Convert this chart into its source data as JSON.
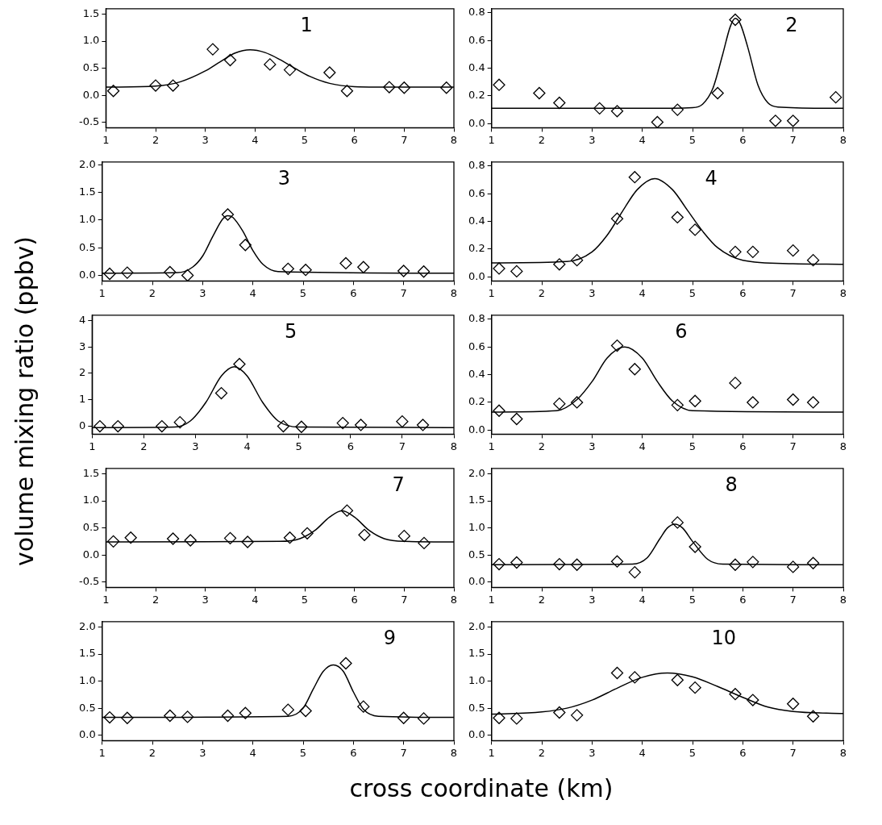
{
  "chart_data": [
    {
      "type": "scatter",
      "annotations": [
        "1"
      ],
      "ylabel": "volume  mixing  ratio  (ppbv)",
      "xlim": [
        1,
        8
      ],
      "xticks": [
        1,
        2,
        3,
        4,
        5,
        6,
        7,
        8
      ],
      "ylim": [
        -0.6,
        1.6
      ],
      "yticks": [
        {
          "value": -0.5,
          "label": "-0.5"
        },
        {
          "value": 0,
          "label": "0.0"
        },
        {
          "value": 0.5,
          "label": "0.5"
        },
        {
          "value": 1,
          "label": "1.0"
        },
        {
          "value": 1.5,
          "label": "1.5"
        }
      ],
      "series": [
        {
          "type": "scatter",
          "marker": "diamond",
          "color": "#000000",
          "x": [
            1.15,
            2.0,
            2.35,
            3.15,
            3.5,
            4.3,
            4.7,
            5.5,
            5.85,
            6.7,
            7.0,
            7.85
          ],
          "values": [
            0.08,
            0.18,
            0.18,
            0.85,
            0.65,
            0.57,
            0.47,
            0.42,
            0.08,
            0.15,
            0.14,
            0.14
          ]
        },
        {
          "type": "line",
          "marker": "none",
          "color": "#000000",
          "x": [
            1,
            2,
            2.5,
            3,
            3.3,
            3.6,
            3.9,
            4.2,
            4.5,
            4.8,
            5.1,
            5.5,
            6,
            7,
            8
          ],
          "values": [
            0.15,
            0.17,
            0.25,
            0.45,
            0.62,
            0.78,
            0.84,
            0.79,
            0.66,
            0.5,
            0.35,
            0.22,
            0.16,
            0.15,
            0.15
          ]
        }
      ]
    },
    {
      "type": "scatter",
      "annotations": [
        "2"
      ],
      "xlim": [
        1,
        8
      ],
      "xticks": [
        1,
        2,
        3,
        4,
        5,
        6,
        7,
        8
      ],
      "ylim": [
        -0.03,
        0.83
      ],
      "yticks": [
        {
          "value": 0,
          "label": "0.0"
        },
        {
          "value": 0.2,
          "label": "0.2"
        },
        {
          "value": 0.4,
          "label": "0.4"
        },
        {
          "value": 0.6,
          "label": "0.6"
        },
        {
          "value": 0.8,
          "label": "0.8"
        }
      ],
      "series": [
        {
          "type": "scatter",
          "marker": "diamond",
          "color": "#000000",
          "x": [
            1.15,
            1.95,
            2.35,
            3.15,
            3.5,
            4.3,
            4.7,
            5.5,
            5.85,
            6.65,
            7.0,
            7.85
          ],
          "values": [
            0.28,
            0.22,
            0.15,
            0.11,
            0.09,
            0.01,
            0.1,
            0.22,
            0.75,
            0.02,
            0.02,
            0.19
          ]
        },
        {
          "type": "line",
          "marker": "none",
          "color": "#000000",
          "x": [
            1,
            4,
            5,
            5.2,
            5.4,
            5.6,
            5.75,
            5.85,
            5.95,
            6.1,
            6.3,
            6.5,
            6.7,
            8
          ],
          "values": [
            0.11,
            0.11,
            0.115,
            0.14,
            0.25,
            0.5,
            0.7,
            0.76,
            0.72,
            0.55,
            0.28,
            0.15,
            0.12,
            0.11
          ]
        }
      ]
    },
    {
      "type": "scatter",
      "annotations": [
        "3"
      ],
      "xlim": [
        1,
        8
      ],
      "xticks": [
        1,
        2,
        3,
        4,
        5,
        6,
        7,
        8
      ],
      "ylim": [
        -0.1,
        2.05
      ],
      "yticks": [
        {
          "value": 0,
          "label": "0.0"
        },
        {
          "value": 0.5,
          "label": "0.5"
        },
        {
          "value": 1,
          "label": "1.0"
        },
        {
          "value": 1.5,
          "label": "1.5"
        },
        {
          "value": 2,
          "label": "2.0"
        }
      ],
      "series": [
        {
          "type": "scatter",
          "marker": "diamond",
          "color": "#000000",
          "x": [
            1.15,
            1.5,
            2.35,
            2.7,
            3.5,
            3.85,
            4.7,
            5.05,
            5.85,
            6.2,
            7.0,
            7.4
          ],
          "values": [
            0.03,
            0.05,
            0.06,
            0.0,
            1.1,
            0.55,
            0.12,
            0.1,
            0.22,
            0.15,
            0.08,
            0.07
          ]
        },
        {
          "type": "line",
          "marker": "none",
          "color": "#000000",
          "x": [
            1,
            2.5,
            2.8,
            3.0,
            3.2,
            3.4,
            3.5,
            3.6,
            3.8,
            4.0,
            4.2,
            4.5,
            8
          ],
          "values": [
            0.04,
            0.05,
            0.15,
            0.35,
            0.7,
            1.02,
            1.08,
            1.05,
            0.8,
            0.45,
            0.2,
            0.07,
            0.04
          ]
        }
      ]
    },
    {
      "type": "scatter",
      "annotations": [
        "4"
      ],
      "xlim": [
        1,
        8
      ],
      "xticks": [
        1,
        2,
        3,
        4,
        5,
        6,
        7,
        8
      ],
      "ylim": [
        -0.03,
        0.83
      ],
      "yticks": [
        {
          "value": 0,
          "label": "0.0"
        },
        {
          "value": 0.2,
          "label": "0.2"
        },
        {
          "value": 0.4,
          "label": "0.4"
        },
        {
          "value": 0.6,
          "label": "0.6"
        },
        {
          "value": 0.8,
          "label": "0.8"
        }
      ],
      "series": [
        {
          "type": "scatter",
          "marker": "diamond",
          "color": "#000000",
          "x": [
            1.15,
            1.5,
            2.35,
            2.7,
            3.5,
            3.85,
            4.7,
            5.05,
            5.85,
            6.2,
            7.0,
            7.4
          ],
          "values": [
            0.06,
            0.04,
            0.09,
            0.12,
            0.42,
            0.72,
            0.43,
            0.34,
            0.18,
            0.18,
            0.19,
            0.12
          ]
        },
        {
          "type": "line",
          "marker": "none",
          "color": "#000000",
          "x": [
            1,
            2.5,
            3,
            3.3,
            3.6,
            3.9,
            4.25,
            4.6,
            4.9,
            5.2,
            5.5,
            6,
            7,
            8
          ],
          "values": [
            0.1,
            0.11,
            0.18,
            0.3,
            0.47,
            0.63,
            0.71,
            0.63,
            0.48,
            0.33,
            0.21,
            0.12,
            0.095,
            0.09
          ]
        }
      ]
    },
    {
      "type": "scatter",
      "annotations": [
        "5"
      ],
      "xlim": [
        1,
        8
      ],
      "xticks": [
        1,
        2,
        3,
        4,
        5,
        6,
        7,
        8
      ],
      "ylim": [
        -0.3,
        4.2
      ],
      "yticks": [
        0,
        1,
        2,
        3,
        4
      ],
      "series": [
        {
          "type": "scatter",
          "marker": "diamond",
          "color": "#000000",
          "x": [
            1.15,
            1.5,
            2.35,
            2.7,
            3.5,
            3.85,
            4.7,
            5.05,
            5.85,
            6.2,
            7.0,
            7.4
          ],
          "values": [
            0.0,
            0.0,
            0.0,
            0.15,
            1.25,
            2.35,
            0.0,
            -0.02,
            0.12,
            0.05,
            0.18,
            0.05
          ]
        },
        {
          "type": "line",
          "marker": "none",
          "color": "#000000",
          "x": [
            1,
            2.6,
            2.9,
            3.2,
            3.5,
            3.75,
            4.0,
            4.3,
            4.6,
            5,
            8
          ],
          "values": [
            -0.05,
            -0.03,
            0.2,
            0.9,
            1.9,
            2.25,
            1.9,
            0.9,
            0.2,
            -0.03,
            -0.05
          ]
        }
      ]
    },
    {
      "type": "scatter",
      "annotations": [
        "6"
      ],
      "xlim": [
        1,
        8
      ],
      "xticks": [
        1,
        2,
        3,
        4,
        5,
        6,
        7,
        8
      ],
      "ylim": [
        -0.03,
        0.83
      ],
      "yticks": [
        {
          "value": 0,
          "label": "0.0"
        },
        {
          "value": 0.2,
          "label": "0.2"
        },
        {
          "value": 0.4,
          "label": "0.4"
        },
        {
          "value": 0.6,
          "label": "0.6"
        },
        {
          "value": 0.8,
          "label": "0.8"
        }
      ],
      "series": [
        {
          "type": "scatter",
          "marker": "diamond",
          "color": "#000000",
          "x": [
            1.15,
            1.5,
            2.35,
            2.7,
            3.5,
            3.85,
            4.7,
            5.05,
            5.85,
            6.2,
            7.0,
            7.4
          ],
          "values": [
            0.14,
            0.08,
            0.19,
            0.2,
            0.61,
            0.44,
            0.18,
            0.21,
            0.34,
            0.2,
            0.22,
            0.2
          ]
        },
        {
          "type": "line",
          "marker": "none",
          "color": "#000000",
          "x": [
            1,
            2.3,
            2.7,
            3,
            3.3,
            3.65,
            4.0,
            4.3,
            4.6,
            5,
            8
          ],
          "values": [
            0.13,
            0.14,
            0.22,
            0.35,
            0.52,
            0.6,
            0.52,
            0.35,
            0.21,
            0.14,
            0.13
          ]
        }
      ]
    },
    {
      "type": "scatter",
      "annotations": [
        "7"
      ],
      "xlim": [
        1,
        8
      ],
      "xticks": [
        1,
        2,
        3,
        4,
        5,
        6,
        7,
        8
      ],
      "ylim": [
        -0.6,
        1.6
      ],
      "yticks": [
        {
          "value": -0.5,
          "label": "-0.5"
        },
        {
          "value": 0,
          "label": "0.0"
        },
        {
          "value": 0.5,
          "label": "0.5"
        },
        {
          "value": 1,
          "label": "1.0"
        },
        {
          "value": 1.5,
          "label": "1.5"
        }
      ],
      "series": [
        {
          "type": "scatter",
          "marker": "diamond",
          "color": "#000000",
          "x": [
            1.15,
            1.5,
            2.35,
            2.7,
            3.5,
            3.85,
            4.7,
            5.05,
            5.85,
            6.2,
            7.0,
            7.4
          ],
          "values": [
            0.25,
            0.32,
            0.3,
            0.27,
            0.31,
            0.24,
            0.32,
            0.4,
            0.82,
            0.37,
            0.35,
            0.22
          ]
        },
        {
          "type": "line",
          "marker": "none",
          "color": "#000000",
          "x": [
            1,
            4.5,
            4.9,
            5.2,
            5.5,
            5.75,
            6.0,
            6.3,
            6.6,
            7,
            8
          ],
          "values": [
            0.24,
            0.25,
            0.3,
            0.45,
            0.7,
            0.82,
            0.7,
            0.45,
            0.3,
            0.25,
            0.24
          ]
        }
      ]
    },
    {
      "type": "scatter",
      "annotations": [
        "8"
      ],
      "xlim": [
        1,
        8
      ],
      "xticks": [
        1,
        2,
        3,
        4,
        5,
        6,
        7,
        8
      ],
      "ylim": [
        -0.1,
        2.1
      ],
      "yticks": [
        {
          "value": 0,
          "label": "0.0"
        },
        {
          "value": 0.5,
          "label": "0.5"
        },
        {
          "value": 1,
          "label": "1.0"
        },
        {
          "value": 1.5,
          "label": "1.5"
        },
        {
          "value": 2,
          "label": "2.0"
        }
      ],
      "series": [
        {
          "type": "scatter",
          "marker": "diamond",
          "color": "#000000",
          "x": [
            1.15,
            1.5,
            2.35,
            2.7,
            3.5,
            3.85,
            4.7,
            5.05,
            5.85,
            6.2,
            7.0,
            7.4
          ],
          "values": [
            0.33,
            0.36,
            0.33,
            0.32,
            0.38,
            0.18,
            1.1,
            0.65,
            0.32,
            0.37,
            0.28,
            0.35
          ]
        },
        {
          "type": "line",
          "marker": "none",
          "color": "#000000",
          "x": [
            1,
            3.8,
            4.1,
            4.35,
            4.5,
            4.65,
            4.8,
            5.0,
            5.3,
            5.6,
            8
          ],
          "values": [
            0.32,
            0.33,
            0.45,
            0.8,
            1.0,
            1.07,
            1.0,
            0.75,
            0.42,
            0.33,
            0.32
          ]
        }
      ]
    },
    {
      "type": "scatter",
      "annotations": [
        "9"
      ],
      "xlim": [
        1,
        8
      ],
      "xticks": [
        1,
        2,
        3,
        4,
        5,
        6,
        7,
        8
      ],
      "ylim": [
        -0.1,
        2.1
      ],
      "yticks": [
        {
          "value": 0,
          "label": "0.0"
        },
        {
          "value": 0.5,
          "label": "0.5"
        },
        {
          "value": 1,
          "label": "1.0"
        },
        {
          "value": 1.5,
          "label": "1.5"
        },
        {
          "value": 2,
          "label": "2.0"
        }
      ],
      "series": [
        {
          "type": "scatter",
          "marker": "diamond",
          "color": "#000000",
          "x": [
            1.15,
            1.5,
            2.35,
            2.7,
            3.5,
            3.85,
            4.7,
            5.05,
            5.85,
            6.2,
            7.0,
            7.4
          ],
          "values": [
            0.33,
            0.32,
            0.36,
            0.34,
            0.36,
            0.41,
            0.47,
            0.45,
            1.33,
            0.53,
            0.32,
            0.31
          ]
        },
        {
          "type": "line",
          "marker": "none",
          "color": "#000000",
          "x": [
            1,
            4.7,
            5.0,
            5.2,
            5.4,
            5.6,
            5.8,
            6.0,
            6.2,
            6.5,
            8
          ],
          "values": [
            0.33,
            0.35,
            0.5,
            0.85,
            1.18,
            1.3,
            1.18,
            0.8,
            0.48,
            0.35,
            0.33
          ]
        }
      ]
    },
    {
      "type": "scatter",
      "annotations": [
        "10"
      ],
      "xlabel": "cross  coordinate  (km)",
      "xlim": [
        1,
        8
      ],
      "xticks": [
        1,
        2,
        3,
        4,
        5,
        6,
        7,
        8
      ],
      "ylim": [
        -0.1,
        2.1
      ],
      "yticks": [
        {
          "value": 0,
          "label": "0.0"
        },
        {
          "value": 0.5,
          "label": "0.5"
        },
        {
          "value": 1,
          "label": "1.0"
        },
        {
          "value": 1.5,
          "label": "1.5"
        },
        {
          "value": 2,
          "label": "2.0"
        }
      ],
      "series": [
        {
          "type": "scatter",
          "marker": "diamond",
          "color": "#000000",
          "x": [
            1.15,
            1.5,
            2.35,
            2.7,
            3.5,
            3.85,
            4.7,
            5.05,
            5.85,
            6.2,
            7.0,
            7.4
          ],
          "values": [
            0.32,
            0.31,
            0.42,
            0.37,
            1.15,
            1.07,
            1.02,
            0.88,
            0.76,
            0.65,
            0.58,
            0.35
          ]
        },
        {
          "type": "line",
          "marker": "none",
          "color": "#000000",
          "x": [
            1,
            2,
            2.5,
            3,
            3.5,
            4,
            4.5,
            5,
            5.5,
            6,
            6.5,
            7,
            8
          ],
          "values": [
            0.39,
            0.43,
            0.5,
            0.65,
            0.87,
            1.07,
            1.15,
            1.08,
            0.9,
            0.7,
            0.52,
            0.44,
            0.4
          ]
        }
      ]
    }
  ]
}
